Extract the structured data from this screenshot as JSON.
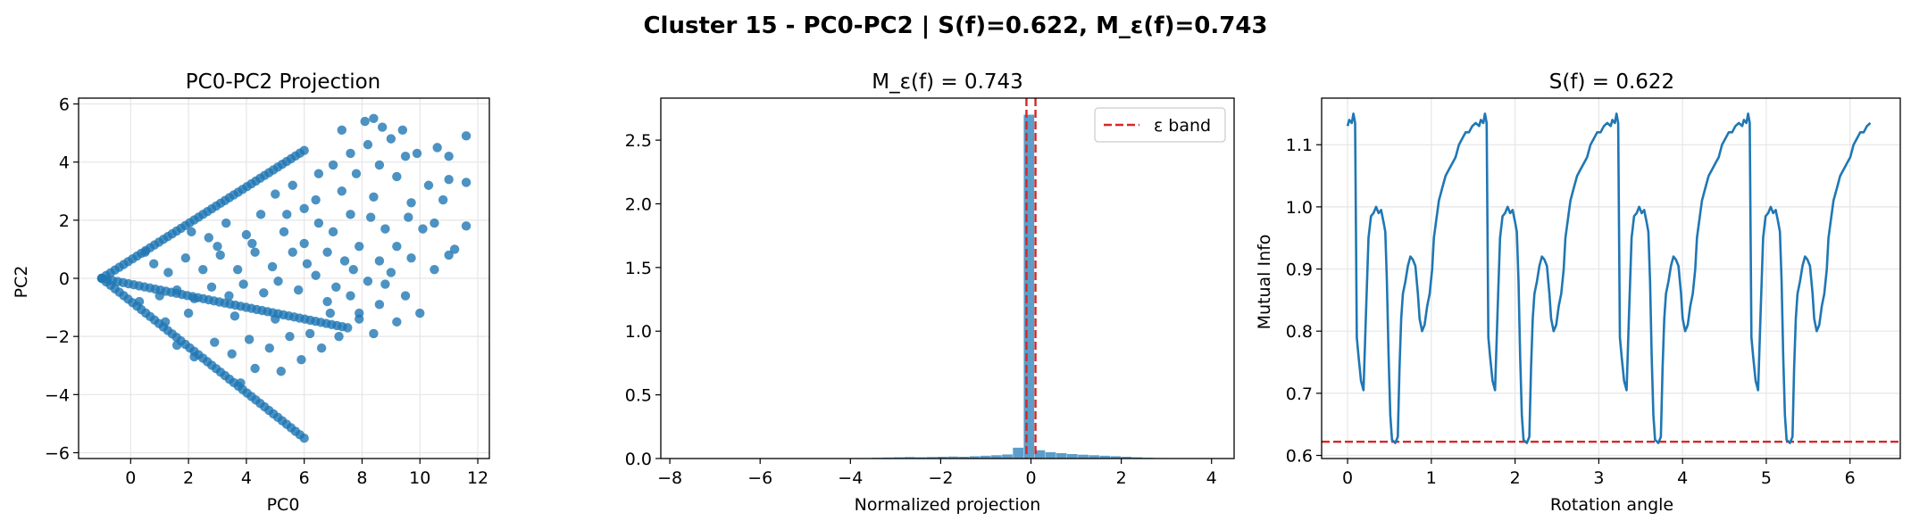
{
  "figure": {
    "suptitle": "Cluster 15 - PC0-PC2 | S(f)=0.622, M_ε(f)=0.743"
  },
  "colors": {
    "series": "#1f77b4",
    "reference": "#d62728",
    "grid": "#e6e6e6"
  },
  "chart_data": [
    {
      "type": "scatter",
      "title": "PC0-PC2 Projection",
      "xlabel": "PC0",
      "ylabel": "PC2",
      "xlim": [
        -1.8,
        12.4
      ],
      "ylim": [
        -6.2,
        6.2
      ],
      "xticks": [
        0,
        2,
        4,
        6,
        8,
        10,
        12
      ],
      "xticklabels": [
        "0",
        "2",
        "4",
        "6",
        "8",
        "10",
        "12"
      ],
      "yticks": [
        -6,
        -4,
        -2,
        0,
        2,
        4,
        6
      ],
      "yticklabels": [
        "−6",
        "−4",
        "−2",
        "0",
        "2",
        "4",
        "6"
      ],
      "grid": true,
      "structure": [
        {
          "name": "upper edge",
          "from": [
            -1,
            0
          ],
          "to": [
            6,
            4.4
          ]
        },
        {
          "name": "middle band",
          "from": [
            -1,
            0
          ],
          "to": [
            7.5,
            -1.7
          ]
        },
        {
          "name": "lower edge",
          "from": [
            -1,
            0
          ],
          "to": [
            6,
            -5.5
          ]
        }
      ],
      "points": [
        [
          8.4,
          5.5
        ],
        [
          8.1,
          5.4
        ],
        [
          7.3,
          5.1
        ],
        [
          8.7,
          5.2
        ],
        [
          9.4,
          5.1
        ],
        [
          9.0,
          4.8
        ],
        [
          11.6,
          4.9
        ],
        [
          10.6,
          4.5
        ],
        [
          9.9,
          4.3
        ],
        [
          11.0,
          4.2
        ],
        [
          9.5,
          4.2
        ],
        [
          8.2,
          4.6
        ],
        [
          7.6,
          4.3
        ],
        [
          8.6,
          3.9
        ],
        [
          11.0,
          3.4
        ],
        [
          11.6,
          3.3
        ],
        [
          10.3,
          3.2
        ],
        [
          9.2,
          3.5
        ],
        [
          7.8,
          3.6
        ],
        [
          7.0,
          3.9
        ],
        [
          6.5,
          3.6
        ],
        [
          10.8,
          2.7
        ],
        [
          9.7,
          2.6
        ],
        [
          8.4,
          2.8
        ],
        [
          7.3,
          3.0
        ],
        [
          6.4,
          2.7
        ],
        [
          5.6,
          3.2
        ],
        [
          5.0,
          2.9
        ],
        [
          11.6,
          1.8
        ],
        [
          10.5,
          1.9
        ],
        [
          10.1,
          1.7
        ],
        [
          9.6,
          2.1
        ],
        [
          8.8,
          1.7
        ],
        [
          8.3,
          2.1
        ],
        [
          7.6,
          2.2
        ],
        [
          7.0,
          1.6
        ],
        [
          6.5,
          1.9
        ],
        [
          6.0,
          2.4
        ],
        [
          5.3,
          1.6
        ],
        [
          4.5,
          2.2
        ],
        [
          4.0,
          1.5
        ],
        [
          3.3,
          1.9
        ],
        [
          2.7,
          1.4
        ],
        [
          2.1,
          1.6
        ],
        [
          11.2,
          1.0
        ],
        [
          11.0,
          0.8
        ],
        [
          9.7,
          0.7
        ],
        [
          9.2,
          1.1
        ],
        [
          8.6,
          0.6
        ],
        [
          7.9,
          1.1
        ],
        [
          7.4,
          0.6
        ],
        [
          6.8,
          0.9
        ],
        [
          6.1,
          0.5
        ],
        [
          5.6,
          0.9
        ],
        [
          4.9,
          0.4
        ],
        [
          4.3,
          0.9
        ],
        [
          3.7,
          0.3
        ],
        [
          3.1,
          0.8
        ],
        [
          2.5,
          0.3
        ],
        [
          1.9,
          0.7
        ],
        [
          1.3,
          0.2
        ],
        [
          0.8,
          0.5
        ],
        [
          9.0,
          0.2
        ],
        [
          8.2,
          -0.1
        ],
        [
          7.7,
          0.3
        ],
        [
          7.1,
          -0.3
        ],
        [
          6.4,
          0.1
        ],
        [
          5.8,
          -0.4
        ],
        [
          5.1,
          -0.1
        ],
        [
          4.6,
          -0.5
        ],
        [
          3.9,
          -0.2
        ],
        [
          3.4,
          -0.6
        ],
        [
          2.8,
          -0.3
        ],
        [
          2.2,
          -0.7
        ],
        [
          1.6,
          -0.4
        ],
        [
          1.0,
          -0.6
        ],
        [
          9.5,
          -0.6
        ],
        [
          8.6,
          -0.9
        ],
        [
          7.9,
          -1.2
        ],
        [
          6.9,
          -1.2
        ],
        [
          10.0,
          -1.2
        ],
        [
          9.2,
          -1.5
        ],
        [
          8.4,
          -1.9
        ],
        [
          7.9,
          -1.4
        ],
        [
          6.2,
          -1.9
        ],
        [
          5.5,
          -2.0
        ],
        [
          4.8,
          -2.4
        ],
        [
          4.1,
          -2.1
        ],
        [
          3.5,
          -2.6
        ],
        [
          2.9,
          -2.2
        ],
        [
          2.2,
          -2.7
        ],
        [
          1.6,
          -2.3
        ],
        [
          6.6,
          -2.4
        ],
        [
          7.2,
          -2.0
        ],
        [
          5.9,
          -2.8
        ],
        [
          5.2,
          -3.2
        ],
        [
          4.3,
          -3.1
        ],
        [
          3.8,
          -3.6
        ],
        [
          7.6,
          -0.6
        ],
        [
          6.0,
          1.2
        ],
        [
          3.0,
          1.1
        ],
        [
          2.0,
          -1.2
        ],
        [
          5.0,
          -1.4
        ],
        [
          4.2,
          1.2
        ],
        [
          1.2,
          -1.5
        ],
        [
          0.5,
          0.9
        ],
        [
          0.3,
          -0.8
        ],
        [
          6.8,
          -0.8
        ],
        [
          8.8,
          -0.2
        ],
        [
          10.5,
          0.3
        ],
        [
          5.4,
          2.2
        ],
        [
          3.6,
          -1.3
        ]
      ]
    },
    {
      "type": "bar",
      "title": "M_ε(f) = 0.743",
      "xlabel": "Normalized projection",
      "ylabel": "",
      "xlim": [
        -8.2,
        4.5
      ],
      "ylim": [
        0,
        2.83
      ],
      "xticks": [
        -8,
        -6,
        -4,
        -2,
        0,
        2,
        4
      ],
      "xticklabels": [
        "−8",
        "−6",
        "−4",
        "−2",
        "0",
        "2",
        "4"
      ],
      "yticks": [
        0,
        0.5,
        1.0,
        1.5,
        2.0,
        2.5
      ],
      "yticklabels": [
        "0.0",
        "0.5",
        "1.0",
        "1.5",
        "2.0",
        "2.5"
      ],
      "grid": false,
      "bin_width": 0.24,
      "bin_starts": [
        -4.0,
        -3.76,
        -3.52,
        -3.28,
        -3.04,
        -2.8,
        -2.56,
        -2.32,
        -2.08,
        -1.84,
        -1.6,
        -1.36,
        -1.12,
        -0.88,
        -0.64,
        -0.4,
        -0.16,
        0.08,
        0.32,
        0.56,
        0.8,
        1.04,
        1.28,
        1.52,
        1.76,
        2.0,
        2.24,
        2.48,
        2.72
      ],
      "values": [
        0.003,
        0.004,
        0.006,
        0.008,
        0.01,
        0.012,
        0.01,
        0.012,
        0.014,
        0.016,
        0.014,
        0.018,
        0.022,
        0.026,
        0.032,
        0.085,
        2.7,
        0.065,
        0.05,
        0.042,
        0.035,
        0.03,
        0.026,
        0.022,
        0.018,
        0.014,
        0.01,
        0.006,
        0.004
      ],
      "reference_lines": [
        -0.1,
        0.1
      ],
      "legend": [
        {
          "label": "ε band",
          "style": "dashed"
        }
      ],
      "legend_position": "top-right"
    },
    {
      "type": "line",
      "title": "S(f) = 0.622",
      "xlabel": "Rotation angle",
      "ylabel": "Mutual Info",
      "xlim": [
        -0.31,
        6.6
      ],
      "ylim": [
        0.595,
        1.175
      ],
      "xticks": [
        0,
        1,
        2,
        3,
        4,
        5,
        6
      ],
      "xticklabels": [
        "0",
        "1",
        "2",
        "3",
        "4",
        "5",
        "6"
      ],
      "yticks": [
        0.6,
        0.7,
        0.8,
        0.9,
        1.0,
        1.1
      ],
      "yticklabels": [
        "0.6",
        "0.7",
        "0.8",
        "0.9",
        "1.0",
        "1.1"
      ],
      "grid": true,
      "reference_line": 0.622,
      "period": 1.5708,
      "cycles": 4,
      "x_end": 6.28,
      "profile": [
        [
          0.0,
          1.13
        ],
        [
          0.02,
          1.14
        ],
        [
          0.05,
          1.135
        ],
        [
          0.07,
          1.15
        ],
        [
          0.09,
          1.135
        ],
        [
          0.11,
          0.79
        ],
        [
          0.13,
          0.76
        ],
        [
          0.16,
          0.72
        ],
        [
          0.19,
          0.705
        ],
        [
          0.22,
          0.83
        ],
        [
          0.25,
          0.95
        ],
        [
          0.28,
          0.985
        ],
        [
          0.31,
          0.99
        ],
        [
          0.34,
          1.0
        ],
        [
          0.37,
          0.99
        ],
        [
          0.4,
          0.995
        ],
        [
          0.43,
          0.975
        ],
        [
          0.45,
          0.96
        ],
        [
          0.47,
          0.88
        ],
        [
          0.49,
          0.76
        ],
        [
          0.51,
          0.665
        ],
        [
          0.53,
          0.625
        ],
        [
          0.57,
          0.62
        ],
        [
          0.6,
          0.63
        ],
        [
          0.62,
          0.74
        ],
        [
          0.64,
          0.82
        ],
        [
          0.66,
          0.86
        ],
        [
          0.69,
          0.88
        ],
        [
          0.72,
          0.905
        ],
        [
          0.75,
          0.92
        ],
        [
          0.78,
          0.915
        ],
        [
          0.81,
          0.905
        ],
        [
          0.84,
          0.86
        ],
        [
          0.86,
          0.82
        ],
        [
          0.89,
          0.8
        ],
        [
          0.92,
          0.81
        ],
        [
          0.95,
          0.84
        ],
        [
          0.98,
          0.86
        ],
        [
          1.01,
          0.9
        ],
        [
          1.03,
          0.95
        ],
        [
          1.06,
          0.98
        ],
        [
          1.09,
          1.01
        ],
        [
          1.13,
          1.03
        ],
        [
          1.17,
          1.05
        ],
        [
          1.21,
          1.06
        ],
        [
          1.25,
          1.07
        ],
        [
          1.29,
          1.08
        ],
        [
          1.33,
          1.1
        ],
        [
          1.37,
          1.11
        ],
        [
          1.41,
          1.12
        ],
        [
          1.45,
          1.12
        ],
        [
          1.49,
          1.13
        ],
        [
          1.53,
          1.135
        ],
        [
          1.5708,
          1.13
        ]
      ]
    }
  ]
}
